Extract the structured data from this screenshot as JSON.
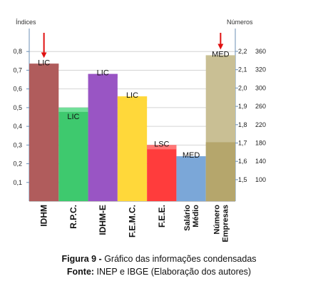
{
  "chart_data": {
    "type": "bar",
    "left_axis_title": "Índices",
    "right_axis_title": "Números",
    "left_ticks": [
      "0,1",
      "0,2",
      "0,3",
      "0,4",
      "0,5",
      "0,6",
      "0,7",
      "0,8"
    ],
    "left_tick_values": [
      0.1,
      0.2,
      0.3,
      0.4,
      0.5,
      0.6,
      0.7,
      0.8
    ],
    "right_ticks_a": [
      "1,5",
      "1,6",
      "1,7",
      "1,8",
      "1,9",
      "2,0",
      "2,1",
      "2,2"
    ],
    "right_ticks_a_values": [
      1.5,
      1.6,
      1.7,
      1.8,
      1.9,
      2.0,
      2.1,
      2.2
    ],
    "right_ticks_b": [
      "100",
      "140",
      "180",
      "220",
      "260",
      "300",
      "320",
      "360"
    ],
    "ylim_left": [
      0,
      0.9
    ],
    "categories": [
      "IDHM",
      "R.P.C.",
      "IDHM-E",
      "F.E.M.C.",
      "F.E.E.",
      "Salário Médio",
      "Número Empresas"
    ],
    "category_lines": [
      [
        "IDHM"
      ],
      [
        "R.P.C."
      ],
      [
        "IDHM-E"
      ],
      [
        "F.E.M.C."
      ],
      [
        "F.E.E."
      ],
      [
        "Salário",
        "Médio"
      ],
      [
        "Número",
        "Empresas"
      ]
    ],
    "values": [
      0.735,
      0.5,
      0.68,
      0.56,
      0.3,
      0.24,
      0.78
    ],
    "inner_values": [
      null,
      null,
      null,
      null,
      null,
      null,
      0.315
    ],
    "labels": [
      "LIC",
      "LIC",
      "LIC",
      "LIC",
      "LSC",
      "MED",
      "MED"
    ],
    "colors": [
      "#b05c5c",
      "#3ec96e",
      "#9955c4",
      "#ffd83a",
      "#ff3c3c",
      "#7ba7d8",
      "#c9bf94"
    ],
    "highlight_colors": [
      "#b05c5c",
      "#7ae3a1",
      "#9955c4",
      "#ffd83a",
      "#ff8080",
      "#7ba7d8",
      "#c9bf94"
    ],
    "inner_color": "#b5a66c",
    "arrows_on": [
      "IDHM",
      "Número Empresas"
    ],
    "arrow_color": "#e01010",
    "grid": true,
    "legend": "none"
  },
  "caption": {
    "line1_bold": "Figura 9 -",
    "line1_rest": " Gráfico das informações condensadas",
    "line2_bold": "Fonte:",
    "line2_rest": " INEP e IBGE (Elaboração dos autores)"
  }
}
